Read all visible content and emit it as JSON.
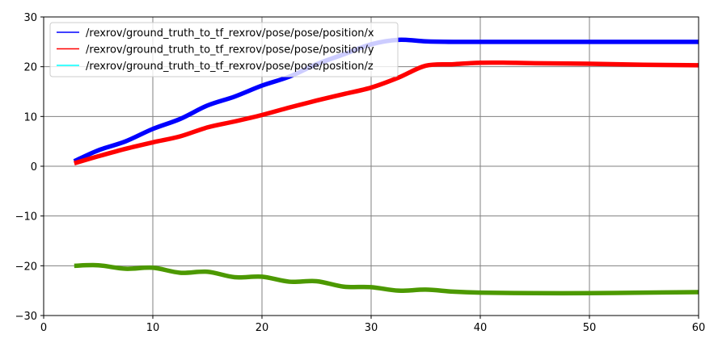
{
  "chart_data": {
    "type": "line",
    "title": "",
    "xlabel": "",
    "ylabel": "",
    "xlim": [
      0,
      60
    ],
    "ylim": [
      -30,
      30
    ],
    "x_ticks": [
      0,
      10,
      20,
      30,
      40,
      50,
      60
    ],
    "y_ticks": [
      -30,
      -20,
      -10,
      0,
      10,
      20,
      30
    ],
    "x_tick_labels": [
      "0",
      "10",
      "20",
      "30",
      "40",
      "50",
      "60"
    ],
    "y_tick_labels": [
      "−30",
      "−20",
      "−10",
      "0",
      "10",
      "20",
      "30"
    ],
    "grid": true,
    "legend_position": "top-left",
    "series": [
      {
        "name": "/rexrov/ground_truth_to_tf_rexrov/pose/pose/position/x",
        "color": "#0000ff",
        "x": [
          2.8,
          5,
          7.5,
          10,
          12.5,
          15,
          17.5,
          20,
          22.5,
          25,
          27.5,
          30,
          32.5,
          35,
          37.5,
          40,
          45,
          50,
          55,
          60
        ],
        "y": [
          1.0,
          3.2,
          5.0,
          7.5,
          9.5,
          12.2,
          14.0,
          16.2,
          18.0,
          20.5,
          22.5,
          24.5,
          25.4,
          25.1,
          25.0,
          25.0,
          25.0,
          25.0,
          25.0,
          25.0
        ]
      },
      {
        "name": "/rexrov/ground_truth_to_tf_rexrov/pose/pose/position/y",
        "color": "#ff0000",
        "x": [
          2.8,
          5,
          7.5,
          10,
          12.5,
          15,
          17.5,
          20,
          22.5,
          25,
          27.5,
          30,
          32.5,
          35,
          37.5,
          40,
          42.5,
          45,
          50,
          55,
          60
        ],
        "y": [
          0.6,
          2.0,
          3.5,
          4.8,
          6.0,
          7.8,
          9.0,
          10.3,
          11.8,
          13.2,
          14.5,
          15.8,
          17.8,
          20.2,
          20.5,
          20.8,
          20.8,
          20.7,
          20.6,
          20.4,
          20.3
        ]
      },
      {
        "name": "/rexrov/ground_truth_to_tf_rexrov/pose/pose/position/z",
        "color": "#00ffff",
        "x": [
          2.8,
          5,
          7.5,
          10,
          12.5,
          15,
          17.5,
          20,
          22.5,
          25,
          27.5,
          30,
          32.5,
          35,
          37.5,
          40,
          45,
          50,
          55,
          60
        ],
        "y": [
          -20.0,
          -19.9,
          -20.6,
          -20.4,
          -21.4,
          -21.2,
          -22.3,
          -22.2,
          -23.2,
          -23.1,
          -24.2,
          -24.3,
          -25.0,
          -24.8,
          -25.2,
          -25.4,
          -25.5,
          -25.5,
          -25.4,
          -25.3
        ]
      }
    ],
    "rendered_colors": {
      "z_line": "#4c9900"
    }
  }
}
